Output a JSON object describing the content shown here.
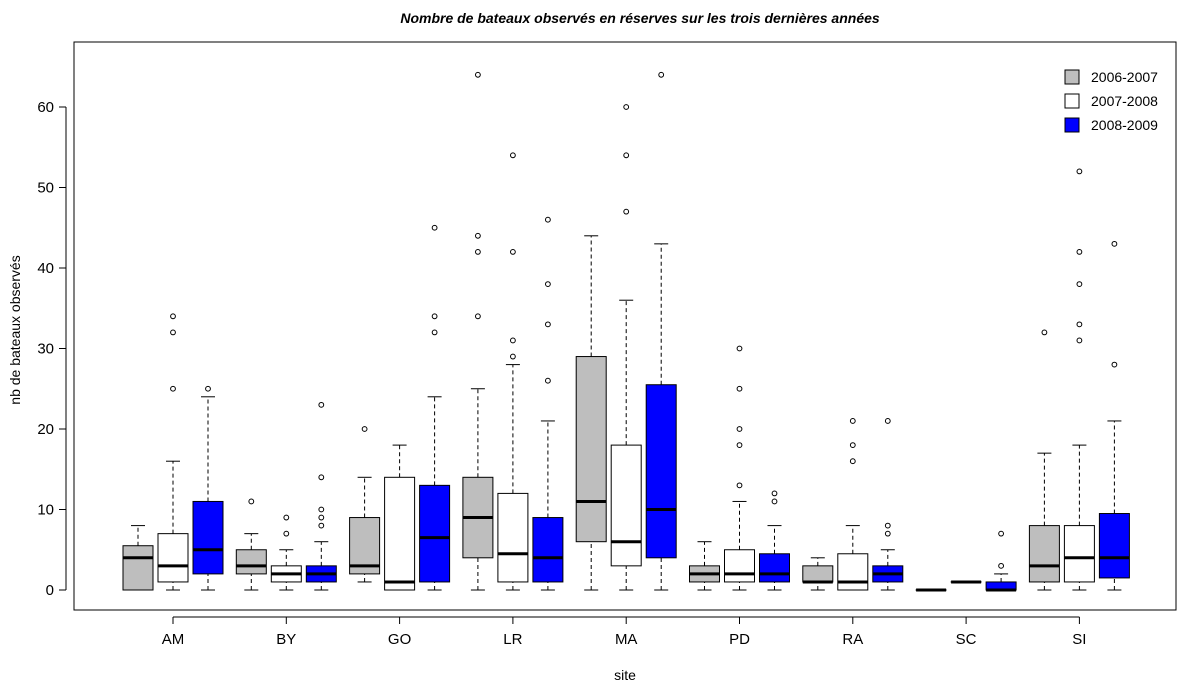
{
  "chart_data": {
    "type": "boxplot",
    "title": "Nombre de bateaux observés en réserves sur les trois dernières années",
    "xlabel": "site",
    "ylabel": "nb de bateaux observés",
    "ylim": [
      -3,
      66
    ],
    "yticks": [
      0,
      10,
      20,
      30,
      40,
      50,
      60
    ],
    "grid": false,
    "legend_position": "top-right",
    "categories": [
      "AM",
      "BY",
      "GO",
      "LR",
      "MA",
      "PD",
      "RA",
      "SC",
      "SI"
    ],
    "series": [
      {
        "name": "2006-2007",
        "color": "#bebebe",
        "boxes": [
          {
            "min": 0,
            "q1": 0,
            "median": 4,
            "q3": 5.5,
            "max": 8,
            "outliers": []
          },
          {
            "min": 0,
            "q1": 2,
            "median": 3,
            "q3": 5,
            "max": 7,
            "outliers": [
              11
            ]
          },
          {
            "min": 1,
            "q1": 2,
            "median": 3,
            "q3": 9,
            "max": 14,
            "outliers": [
              20
            ]
          },
          {
            "min": 0,
            "q1": 4,
            "median": 9,
            "q3": 14,
            "max": 25,
            "outliers": [
              34,
              42,
              44,
              64
            ]
          },
          {
            "min": 0,
            "q1": 6,
            "median": 11,
            "q3": 29,
            "max": 44,
            "outliers": []
          },
          {
            "min": 0,
            "q1": 1,
            "median": 2,
            "q3": 3,
            "max": 6,
            "outliers": []
          },
          {
            "min": 0,
            "q1": 1,
            "median": 1,
            "q3": 3,
            "max": 4,
            "outliers": []
          },
          {
            "min": 0,
            "q1": 0,
            "median": 0,
            "q3": 0,
            "max": 0,
            "outliers": []
          },
          {
            "min": 0,
            "q1": 1,
            "median": 3,
            "q3": 8,
            "max": 17,
            "outliers": [
              32
            ]
          }
        ]
      },
      {
        "name": "2007-2008",
        "color": "#ffffff",
        "boxes": [
          {
            "min": 0,
            "q1": 1,
            "median": 3,
            "q3": 7,
            "max": 16,
            "outliers": [
              25,
              32,
              34
            ]
          },
          {
            "min": 0,
            "q1": 1,
            "median": 2,
            "q3": 3,
            "max": 5,
            "outliers": [
              7,
              9
            ]
          },
          {
            "min": 0,
            "q1": 0,
            "median": 1,
            "q3": 14,
            "max": 18,
            "outliers": []
          },
          {
            "min": 0,
            "q1": 1,
            "median": 4.5,
            "q3": 12,
            "max": 28,
            "outliers": [
              29,
              31,
              42,
              54
            ]
          },
          {
            "min": 0,
            "q1": 3,
            "median": 6,
            "q3": 18,
            "max": 36,
            "outliers": [
              47,
              54,
              60
            ]
          },
          {
            "min": 0,
            "q1": 1,
            "median": 2,
            "q3": 5,
            "max": 11,
            "outliers": [
              13,
              18,
              20,
              25,
              30
            ]
          },
          {
            "min": 0,
            "q1": 0,
            "median": 1,
            "q3": 4.5,
            "max": 8,
            "outliers": [
              16,
              18,
              21
            ]
          },
          {
            "min": 1,
            "q1": 1,
            "median": 1,
            "q3": 1,
            "max": 1,
            "outliers": []
          },
          {
            "min": 0,
            "q1": 1,
            "median": 4,
            "q3": 8,
            "max": 18,
            "outliers": [
              31,
              33,
              38,
              42,
              52
            ]
          }
        ]
      },
      {
        "name": "2008-2009",
        "color": "#0000ff",
        "boxes": [
          {
            "min": 0,
            "q1": 2,
            "median": 5,
            "q3": 11,
            "max": 24,
            "outliers": [
              25
            ]
          },
          {
            "min": 0,
            "q1": 1,
            "median": 2,
            "q3": 3,
            "max": 6,
            "outliers": [
              8,
              9,
              10,
              14,
              23
            ]
          },
          {
            "min": 0,
            "q1": 1,
            "median": 6.5,
            "q3": 13,
            "max": 24,
            "outliers": [
              32,
              34,
              45
            ]
          },
          {
            "min": 0,
            "q1": 1,
            "median": 4,
            "q3": 9,
            "max": 21,
            "outliers": [
              26,
              33,
              38,
              46
            ]
          },
          {
            "min": 0,
            "q1": 4,
            "median": 10,
            "q3": 25.5,
            "max": 43,
            "outliers": [
              64
            ]
          },
          {
            "min": 0,
            "q1": 1,
            "median": 2,
            "q3": 4.5,
            "max": 8,
            "outliers": [
              11,
              12
            ]
          },
          {
            "min": 0,
            "q1": 1,
            "median": 2,
            "q3": 3,
            "max": 5,
            "outliers": [
              7,
              8,
              21
            ]
          },
          {
            "min": 0,
            "q1": 0,
            "median": 0,
            "q3": 1,
            "max": 2,
            "outliers": [
              3,
              7
            ]
          },
          {
            "min": 0,
            "q1": 1.5,
            "median": 4,
            "q3": 9.5,
            "max": 21,
            "outliers": [
              28,
              43
            ]
          }
        ]
      }
    ]
  }
}
